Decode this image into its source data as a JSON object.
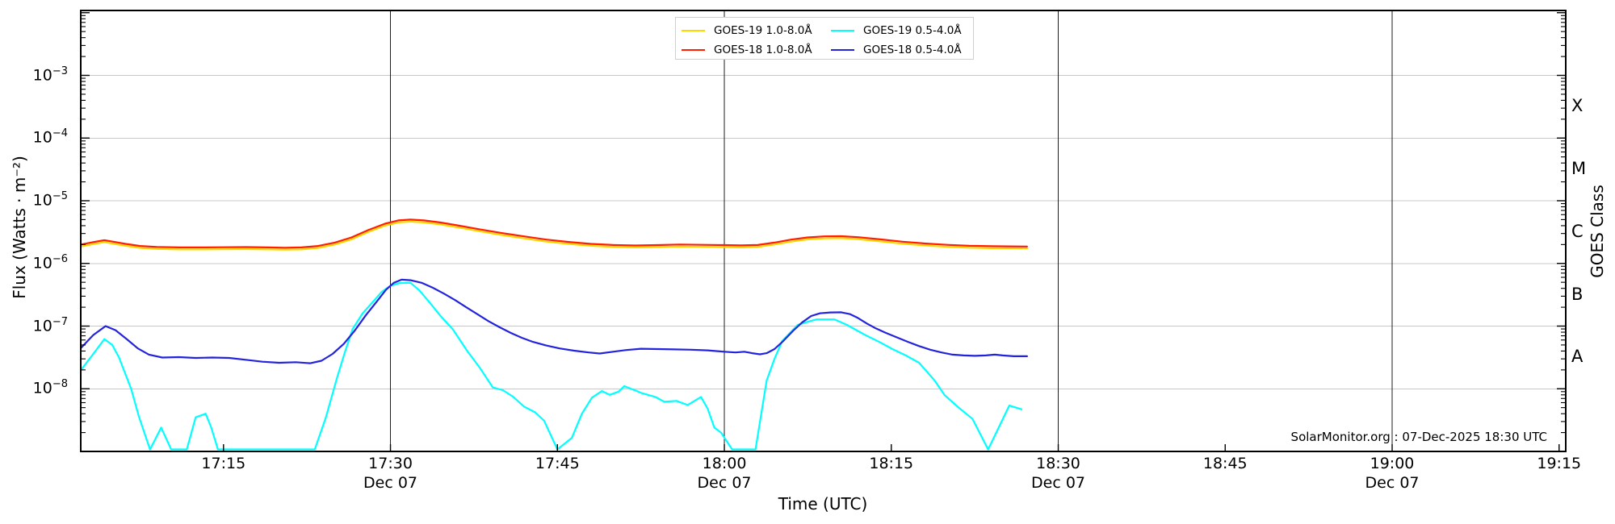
{
  "watermark": "SolarMonitor.org : 07-Dec-2025 18:30 UTC",
  "legend": {
    "items": [
      {
        "label": "GOES-19 1.0-8.0Å",
        "color": "#ffd700"
      },
      {
        "label": "GOES-19 0.5-4.0Å",
        "color": "#00ffff"
      },
      {
        "label": "GOES-18 1.0-8.0Å",
        "color": "#ff1e00"
      },
      {
        "label": "GOES-18 0.5-4.0Å",
        "color": "#2323dd"
      }
    ]
  },
  "chart_data": {
    "type": "line",
    "title": "",
    "xlabel": "Time (UTC)",
    "ylabel": "Flux (Watts · m⁻²)",
    "ylabel_right": "GOES Class",
    "x_unit": "minutes after 17:00 UTC, 07-Dec-2025",
    "xlim_minutes": [
      2.2,
      135.8
    ],
    "ylim": [
      1e-09,
      0.0108
    ],
    "grid": "horizontal gridlines at each decade 1e-8..1e-3, light gray",
    "legend_position": "top center, 2 columns",
    "xticks": [
      {
        "label": "17:15",
        "t": 15
      },
      {
        "label": "17:30",
        "t": 30,
        "date": "Dec 07",
        "line": true
      },
      {
        "label": "17:45",
        "t": 45
      },
      {
        "label": "18:00",
        "t": 60,
        "date": "Dec 07",
        "line": true
      },
      {
        "label": "18:15",
        "t": 75
      },
      {
        "label": "18:30",
        "t": 90,
        "date": "Dec 07",
        "line": true
      },
      {
        "label": "18:45",
        "t": 105
      },
      {
        "label": "19:00",
        "t": 120,
        "date": "Dec 07",
        "line": true
      },
      {
        "label": "19:15",
        "t": 135
      }
    ],
    "yticks_labeled": [
      {
        "base": "10",
        "exp": "−3",
        "value": 0.001
      },
      {
        "base": "10",
        "exp": "−4",
        "value": 0.0001
      },
      {
        "base": "10",
        "exp": "−5",
        "value": 1e-05
      },
      {
        "base": "10",
        "exp": "−6",
        "value": 1e-06
      },
      {
        "base": "10",
        "exp": "−7",
        "value": 1e-07
      },
      {
        "base": "10",
        "exp": "−8",
        "value": 1e-08
      }
    ],
    "gridline_values": [
      0.001,
      0.0001,
      1e-05,
      1e-06,
      1e-07,
      1e-08
    ],
    "major_tick_decades": [
      -9,
      -8,
      -7,
      -6,
      -5,
      -4,
      -3,
      -2
    ],
    "class_letters": [
      {
        "label": "X",
        "flux": 0.0003162
      },
      {
        "label": "M",
        "flux": 3.162e-05
      },
      {
        "label": "C",
        "flux": 3.162e-06
      },
      {
        "label": "B",
        "flux": 3.162e-07
      },
      {
        "label": "A",
        "flux": 3.162e-08
      }
    ],
    "series": [
      {
        "name": "GOES-19 1.0-8.0Å",
        "color": "#ffd700",
        "width": 2.2,
        "points": [
          [
            2.2,
            1.86e-06
          ],
          [
            3.2,
            2.02e-06
          ],
          [
            4.3,
            2.19e-06
          ],
          [
            5.2,
            2.05e-06
          ],
          [
            6.2,
            1.91e-06
          ],
          [
            7.5,
            1.77e-06
          ],
          [
            9,
            1.7e-06
          ],
          [
            11,
            1.67e-06
          ],
          [
            13,
            1.67e-06
          ],
          [
            15,
            1.68e-06
          ],
          [
            17,
            1.69e-06
          ],
          [
            19,
            1.67e-06
          ],
          [
            20.5,
            1.66e-06
          ],
          [
            22,
            1.67e-06
          ],
          [
            23.5,
            1.77e-06
          ],
          [
            25,
            2e-06
          ],
          [
            26.5,
            2.42e-06
          ],
          [
            28,
            3.16e-06
          ],
          [
            29.5,
            4e-06
          ],
          [
            30.7,
            4.51e-06
          ],
          [
            31.8,
            4.65e-06
          ],
          [
            33,
            4.51e-06
          ],
          [
            34.5,
            4.19e-06
          ],
          [
            36,
            3.77e-06
          ],
          [
            38,
            3.26e-06
          ],
          [
            40,
            2.84e-06
          ],
          [
            42,
            2.51e-06
          ],
          [
            44,
            2.23e-06
          ],
          [
            46,
            2.05e-06
          ],
          [
            48,
            1.91e-06
          ],
          [
            50,
            1.83e-06
          ],
          [
            52,
            1.8e-06
          ],
          [
            54,
            1.82e-06
          ],
          [
            56,
            1.86e-06
          ],
          [
            58,
            1.84e-06
          ],
          [
            60,
            1.82e-06
          ],
          [
            61.5,
            1.8e-06
          ],
          [
            63,
            1.83e-06
          ],
          [
            64.5,
            2e-06
          ],
          [
            66,
            2.23e-06
          ],
          [
            67.5,
            2.42e-06
          ],
          [
            69,
            2.51e-06
          ],
          [
            70.5,
            2.53e-06
          ],
          [
            72,
            2.44e-06
          ],
          [
            74,
            2.25e-06
          ],
          [
            76,
            2.06e-06
          ],
          [
            78,
            1.93e-06
          ],
          [
            80,
            1.84e-06
          ],
          [
            82,
            1.78e-06
          ],
          [
            84,
            1.75e-06
          ],
          [
            85.5,
            1.74e-06
          ],
          [
            87.2,
            1.73e-06
          ]
        ]
      },
      {
        "name": "GOES-18 1.0-8.0Å",
        "color": "#ff1e00",
        "width": 2.2,
        "points": [
          [
            2.2,
            2e-06
          ],
          [
            3.2,
            2.17e-06
          ],
          [
            4.3,
            2.35e-06
          ],
          [
            5.2,
            2.2e-06
          ],
          [
            6.2,
            2.05e-06
          ],
          [
            7.5,
            1.9e-06
          ],
          [
            9,
            1.83e-06
          ],
          [
            11,
            1.8e-06
          ],
          [
            13,
            1.8e-06
          ],
          [
            15,
            1.81e-06
          ],
          [
            17,
            1.82e-06
          ],
          [
            19,
            1.8e-06
          ],
          [
            20.5,
            1.78e-06
          ],
          [
            22,
            1.8e-06
          ],
          [
            23.5,
            1.9e-06
          ],
          [
            25,
            2.15e-06
          ],
          [
            26.5,
            2.6e-06
          ],
          [
            28,
            3.4e-06
          ],
          [
            29.5,
            4.3e-06
          ],
          [
            30.7,
            4.85e-06
          ],
          [
            31.8,
            5e-06
          ],
          [
            33,
            4.85e-06
          ],
          [
            34.5,
            4.5e-06
          ],
          [
            36,
            4.05e-06
          ],
          [
            38,
            3.5e-06
          ],
          [
            40,
            3.05e-06
          ],
          [
            42,
            2.7e-06
          ],
          [
            44,
            2.4e-06
          ],
          [
            46,
            2.2e-06
          ],
          [
            48,
            2.05e-06
          ],
          [
            50,
            1.97e-06
          ],
          [
            52,
            1.93e-06
          ],
          [
            54,
            1.96e-06
          ],
          [
            56,
            2e-06
          ],
          [
            58,
            1.98e-06
          ],
          [
            60,
            1.96e-06
          ],
          [
            61.5,
            1.94e-06
          ],
          [
            63,
            1.97e-06
          ],
          [
            64.5,
            2.15e-06
          ],
          [
            66,
            2.4e-06
          ],
          [
            67.5,
            2.6e-06
          ],
          [
            69,
            2.7e-06
          ],
          [
            70.5,
            2.72e-06
          ],
          [
            72,
            2.62e-06
          ],
          [
            74,
            2.42e-06
          ],
          [
            76,
            2.22e-06
          ],
          [
            78,
            2.08e-06
          ],
          [
            80,
            1.98e-06
          ],
          [
            82,
            1.91e-06
          ],
          [
            84,
            1.88e-06
          ],
          [
            85.5,
            1.87e-06
          ],
          [
            87.2,
            1.86e-06
          ]
        ]
      },
      {
        "name": "GOES-19 0.5-4.0Å",
        "color": "#00ffff",
        "width": 2.2,
        "points": [
          [
            2.2,
            2e-08
          ],
          [
            3.3,
            3.6e-08
          ],
          [
            4.3,
            6.2e-08
          ],
          [
            5.0,
            5e-08
          ],
          [
            5.6,
            3.2e-08
          ],
          [
            6.7,
            1e-08
          ],
          [
            7.4,
            3.6e-09
          ],
          [
            8.4,
            1e-09
          ],
          [
            9.4,
            2.4e-09
          ],
          [
            10.3,
            1e-09
          ],
          [
            11.7,
            1e-09
          ],
          [
            12.5,
            3.5e-09
          ],
          [
            13.4,
            4e-09
          ],
          [
            13.9,
            2.4e-09
          ],
          [
            14.5,
            1e-09
          ],
          [
            17,
            1e-09
          ],
          [
            20,
            1e-09
          ],
          [
            23.2,
            1e-09
          ],
          [
            24.2,
            3.5e-09
          ],
          [
            25.2,
            1.5e-08
          ],
          [
            25.9,
            3.8e-08
          ],
          [
            26.6,
            9e-08
          ],
          [
            27.5,
            1.6e-07
          ],
          [
            28.3,
            2.3e-07
          ],
          [
            29.2,
            3.5e-07
          ],
          [
            30,
            4.4e-07
          ],
          [
            30.8,
            4.85e-07
          ],
          [
            31.8,
            4.9e-07
          ],
          [
            32.6,
            3.7e-07
          ],
          [
            33.5,
            2.4e-07
          ],
          [
            34.5,
            1.45e-07
          ],
          [
            35.6,
            8.9e-08
          ],
          [
            36.9,
            4e-08
          ],
          [
            38,
            2.2e-08
          ],
          [
            39.2,
            1.05e-08
          ],
          [
            40.1,
            9.5e-09
          ],
          [
            41,
            7.5e-09
          ],
          [
            42,
            5.2e-09
          ],
          [
            43,
            4.2e-09
          ],
          [
            43.8,
            3.1e-09
          ],
          [
            45,
            1e-09
          ],
          [
            46.3,
            1.65e-09
          ],
          [
            47.2,
            4e-09
          ],
          [
            48.1,
            7.2e-09
          ],
          [
            49,
            9.2e-09
          ],
          [
            49.7,
            8e-09
          ],
          [
            50.5,
            9e-09
          ],
          [
            51,
            1.1e-08
          ],
          [
            52,
            9.4e-09
          ],
          [
            52.5,
            8.6e-09
          ],
          [
            53.8,
            7.4e-09
          ],
          [
            54.6,
            6.2e-09
          ],
          [
            55.7,
            6.4e-09
          ],
          [
            56.7,
            5.5e-09
          ],
          [
            57.9,
            7.4e-09
          ],
          [
            58.5,
            4.8e-09
          ],
          [
            59.1,
            2.4e-09
          ],
          [
            59.7,
            2e-09
          ],
          [
            60.7,
            1e-09
          ],
          [
            62.8,
            1e-09
          ],
          [
            63.8,
            1.35e-08
          ],
          [
            64.5,
            3e-08
          ],
          [
            65.2,
            5.8e-08
          ],
          [
            66.6,
            1.05e-07
          ],
          [
            67.7,
            1.2e-07
          ],
          [
            68.3,
            1.28e-07
          ],
          [
            69.9,
            1.28e-07
          ],
          [
            71,
            1.05e-07
          ],
          [
            72.6,
            7.3e-08
          ],
          [
            74,
            5.5e-08
          ],
          [
            75.1,
            4.3e-08
          ],
          [
            76.3,
            3.4e-08
          ],
          [
            77.5,
            2.6e-08
          ],
          [
            78.9,
            1.35e-08
          ],
          [
            79.8,
            7.9e-09
          ],
          [
            81,
            5.1e-09
          ],
          [
            82.3,
            3.3e-09
          ],
          [
            83.7,
            1e-09
          ],
          [
            85.6,
            5.4e-09
          ],
          [
            86.7,
            4.7e-09
          ]
        ]
      },
      {
        "name": "GOES-18 0.5-4.0Å",
        "color": "#2323dd",
        "width": 2.2,
        "points": [
          [
            2.2,
            4.5e-08
          ],
          [
            3.3,
            7.2e-08
          ],
          [
            4.4,
            1e-07
          ],
          [
            5.3,
            8.6e-08
          ],
          [
            6.3,
            6.2e-08
          ],
          [
            7.3,
            4.4e-08
          ],
          [
            8.3,
            3.5e-08
          ],
          [
            9.5,
            3.15e-08
          ],
          [
            11,
            3.2e-08
          ],
          [
            12.5,
            3.1e-08
          ],
          [
            14,
            3.15e-08
          ],
          [
            15.5,
            3.1e-08
          ],
          [
            17,
            2.9e-08
          ],
          [
            18.5,
            2.7e-08
          ],
          [
            20,
            2.6e-08
          ],
          [
            21.5,
            2.65e-08
          ],
          [
            22.8,
            2.55e-08
          ],
          [
            23.8,
            2.8e-08
          ],
          [
            24.8,
            3.6e-08
          ],
          [
            25.8,
            5.2e-08
          ],
          [
            26.8,
            8.5e-08
          ],
          [
            27.8,
            1.5e-07
          ],
          [
            28.8,
            2.5e-07
          ],
          [
            29.6,
            3.8e-07
          ],
          [
            30.3,
            4.9e-07
          ],
          [
            31,
            5.5e-07
          ],
          [
            31.8,
            5.4e-07
          ],
          [
            32.8,
            4.9e-07
          ],
          [
            33.8,
            4.1e-07
          ],
          [
            34.8,
            3.3e-07
          ],
          [
            35.8,
            2.6e-07
          ],
          [
            36.8,
            2e-07
          ],
          [
            37.8,
            1.55e-07
          ],
          [
            38.8,
            1.2e-07
          ],
          [
            39.8,
            9.6e-08
          ],
          [
            40.8,
            7.8e-08
          ],
          [
            41.8,
            6.5e-08
          ],
          [
            42.8,
            5.6e-08
          ],
          [
            44,
            4.9e-08
          ],
          [
            45.2,
            4.4e-08
          ],
          [
            46.5,
            4.05e-08
          ],
          [
            47.8,
            3.8e-08
          ],
          [
            48.8,
            3.65e-08
          ],
          [
            50,
            3.9e-08
          ],
          [
            51.2,
            4.15e-08
          ],
          [
            52.5,
            4.35e-08
          ],
          [
            54,
            4.3e-08
          ],
          [
            55.5,
            4.25e-08
          ],
          [
            57,
            4.2e-08
          ],
          [
            58.5,
            4.1e-08
          ],
          [
            60,
            3.9e-08
          ],
          [
            61,
            3.8e-08
          ],
          [
            61.8,
            3.9e-08
          ],
          [
            62.5,
            3.7e-08
          ],
          [
            63.2,
            3.55e-08
          ],
          [
            63.8,
            3.7e-08
          ],
          [
            64.5,
            4.3e-08
          ],
          [
            65.3,
            5.8e-08
          ],
          [
            66.2,
            8.5e-08
          ],
          [
            67,
            1.15e-07
          ],
          [
            67.8,
            1.45e-07
          ],
          [
            68.6,
            1.6e-07
          ],
          [
            69.5,
            1.65e-07
          ],
          [
            70.5,
            1.66e-07
          ],
          [
            71.3,
            1.55e-07
          ],
          [
            72,
            1.35e-07
          ],
          [
            72.8,
            1.1e-07
          ],
          [
            73.6,
            9.2e-08
          ],
          [
            74.5,
            7.8e-08
          ],
          [
            75.5,
            6.6e-08
          ],
          [
            76.5,
            5.6e-08
          ],
          [
            77.5,
            4.8e-08
          ],
          [
            78.5,
            4.2e-08
          ],
          [
            79.5,
            3.8e-08
          ],
          [
            80.5,
            3.5e-08
          ],
          [
            81.5,
            3.4e-08
          ],
          [
            82.5,
            3.35e-08
          ],
          [
            83.5,
            3.4e-08
          ],
          [
            84.3,
            3.5e-08
          ],
          [
            85,
            3.4e-08
          ],
          [
            86,
            3.3e-08
          ],
          [
            87.2,
            3.3e-08
          ]
        ]
      }
    ]
  },
  "style": {
    "grid_color": "#c8c8c8",
    "dateline_color": "#1c1c1c",
    "spine_color": "#000000",
    "background": "#ffffff"
  }
}
